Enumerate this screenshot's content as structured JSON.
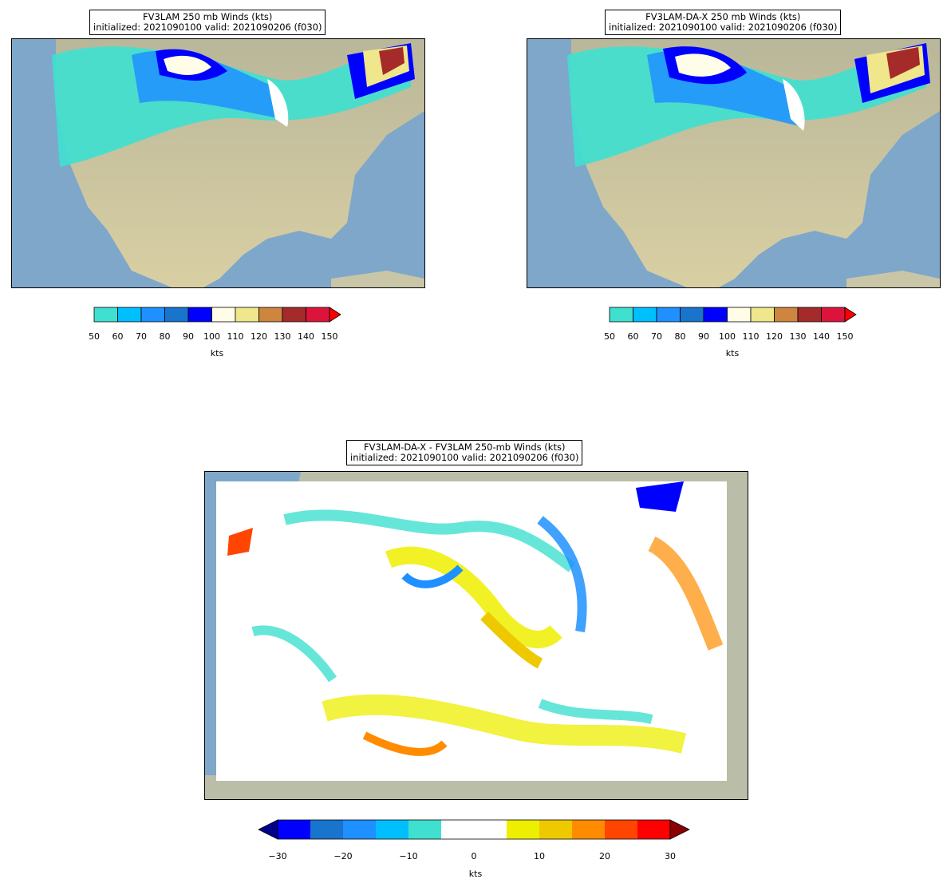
{
  "panels": [
    {
      "title_line1": "FV3LAM 250 mb Winds (kts)",
      "title_line2": "initialized: 2021090100 valid: 2021090206 (f030)"
    },
    {
      "title_line1": "FV3LAM-DA-X 250 mb Winds (kts)",
      "title_line2": "initialized: 2021090100 valid: 2021090206 (f030)"
    }
  ],
  "diff_panel": {
    "title_line1": "FV3LAM-DA-X - FV3LAM 250-mb Winds (kts)",
    "title_line2": "initialized: 2021090100 valid: 2021090206 (f030)"
  },
  "wind_colorbar": {
    "ticks": [
      "50",
      "60",
      "70",
      "80",
      "90",
      "100",
      "110",
      "120",
      "130",
      "140",
      "150"
    ],
    "colors": [
      "#40e0d0",
      "#00bfff",
      "#1e90ff",
      "#1874cd",
      "#0000ff",
      "#fffde8",
      "#f0e68c",
      "#cd853f",
      "#a52a2a",
      "#dc143c"
    ],
    "extend_color": "#ff0000",
    "unit": "kts"
  },
  "diff_colorbar": {
    "ticks": [
      "−30",
      "−20",
      "−10",
      "0",
      "10",
      "20",
      "30"
    ],
    "colors": [
      "#0000ff",
      "#1874cd",
      "#1e90ff",
      "#00bfff",
      "#40e0d0",
      "#ffffff",
      "#ffffff",
      "#eeee00",
      "#eec900",
      "#ff8c00",
      "#ff4500",
      "#ff0000"
    ],
    "under_color": "#00008b",
    "over_color": "#8b0000",
    "unit": "kts"
  }
}
